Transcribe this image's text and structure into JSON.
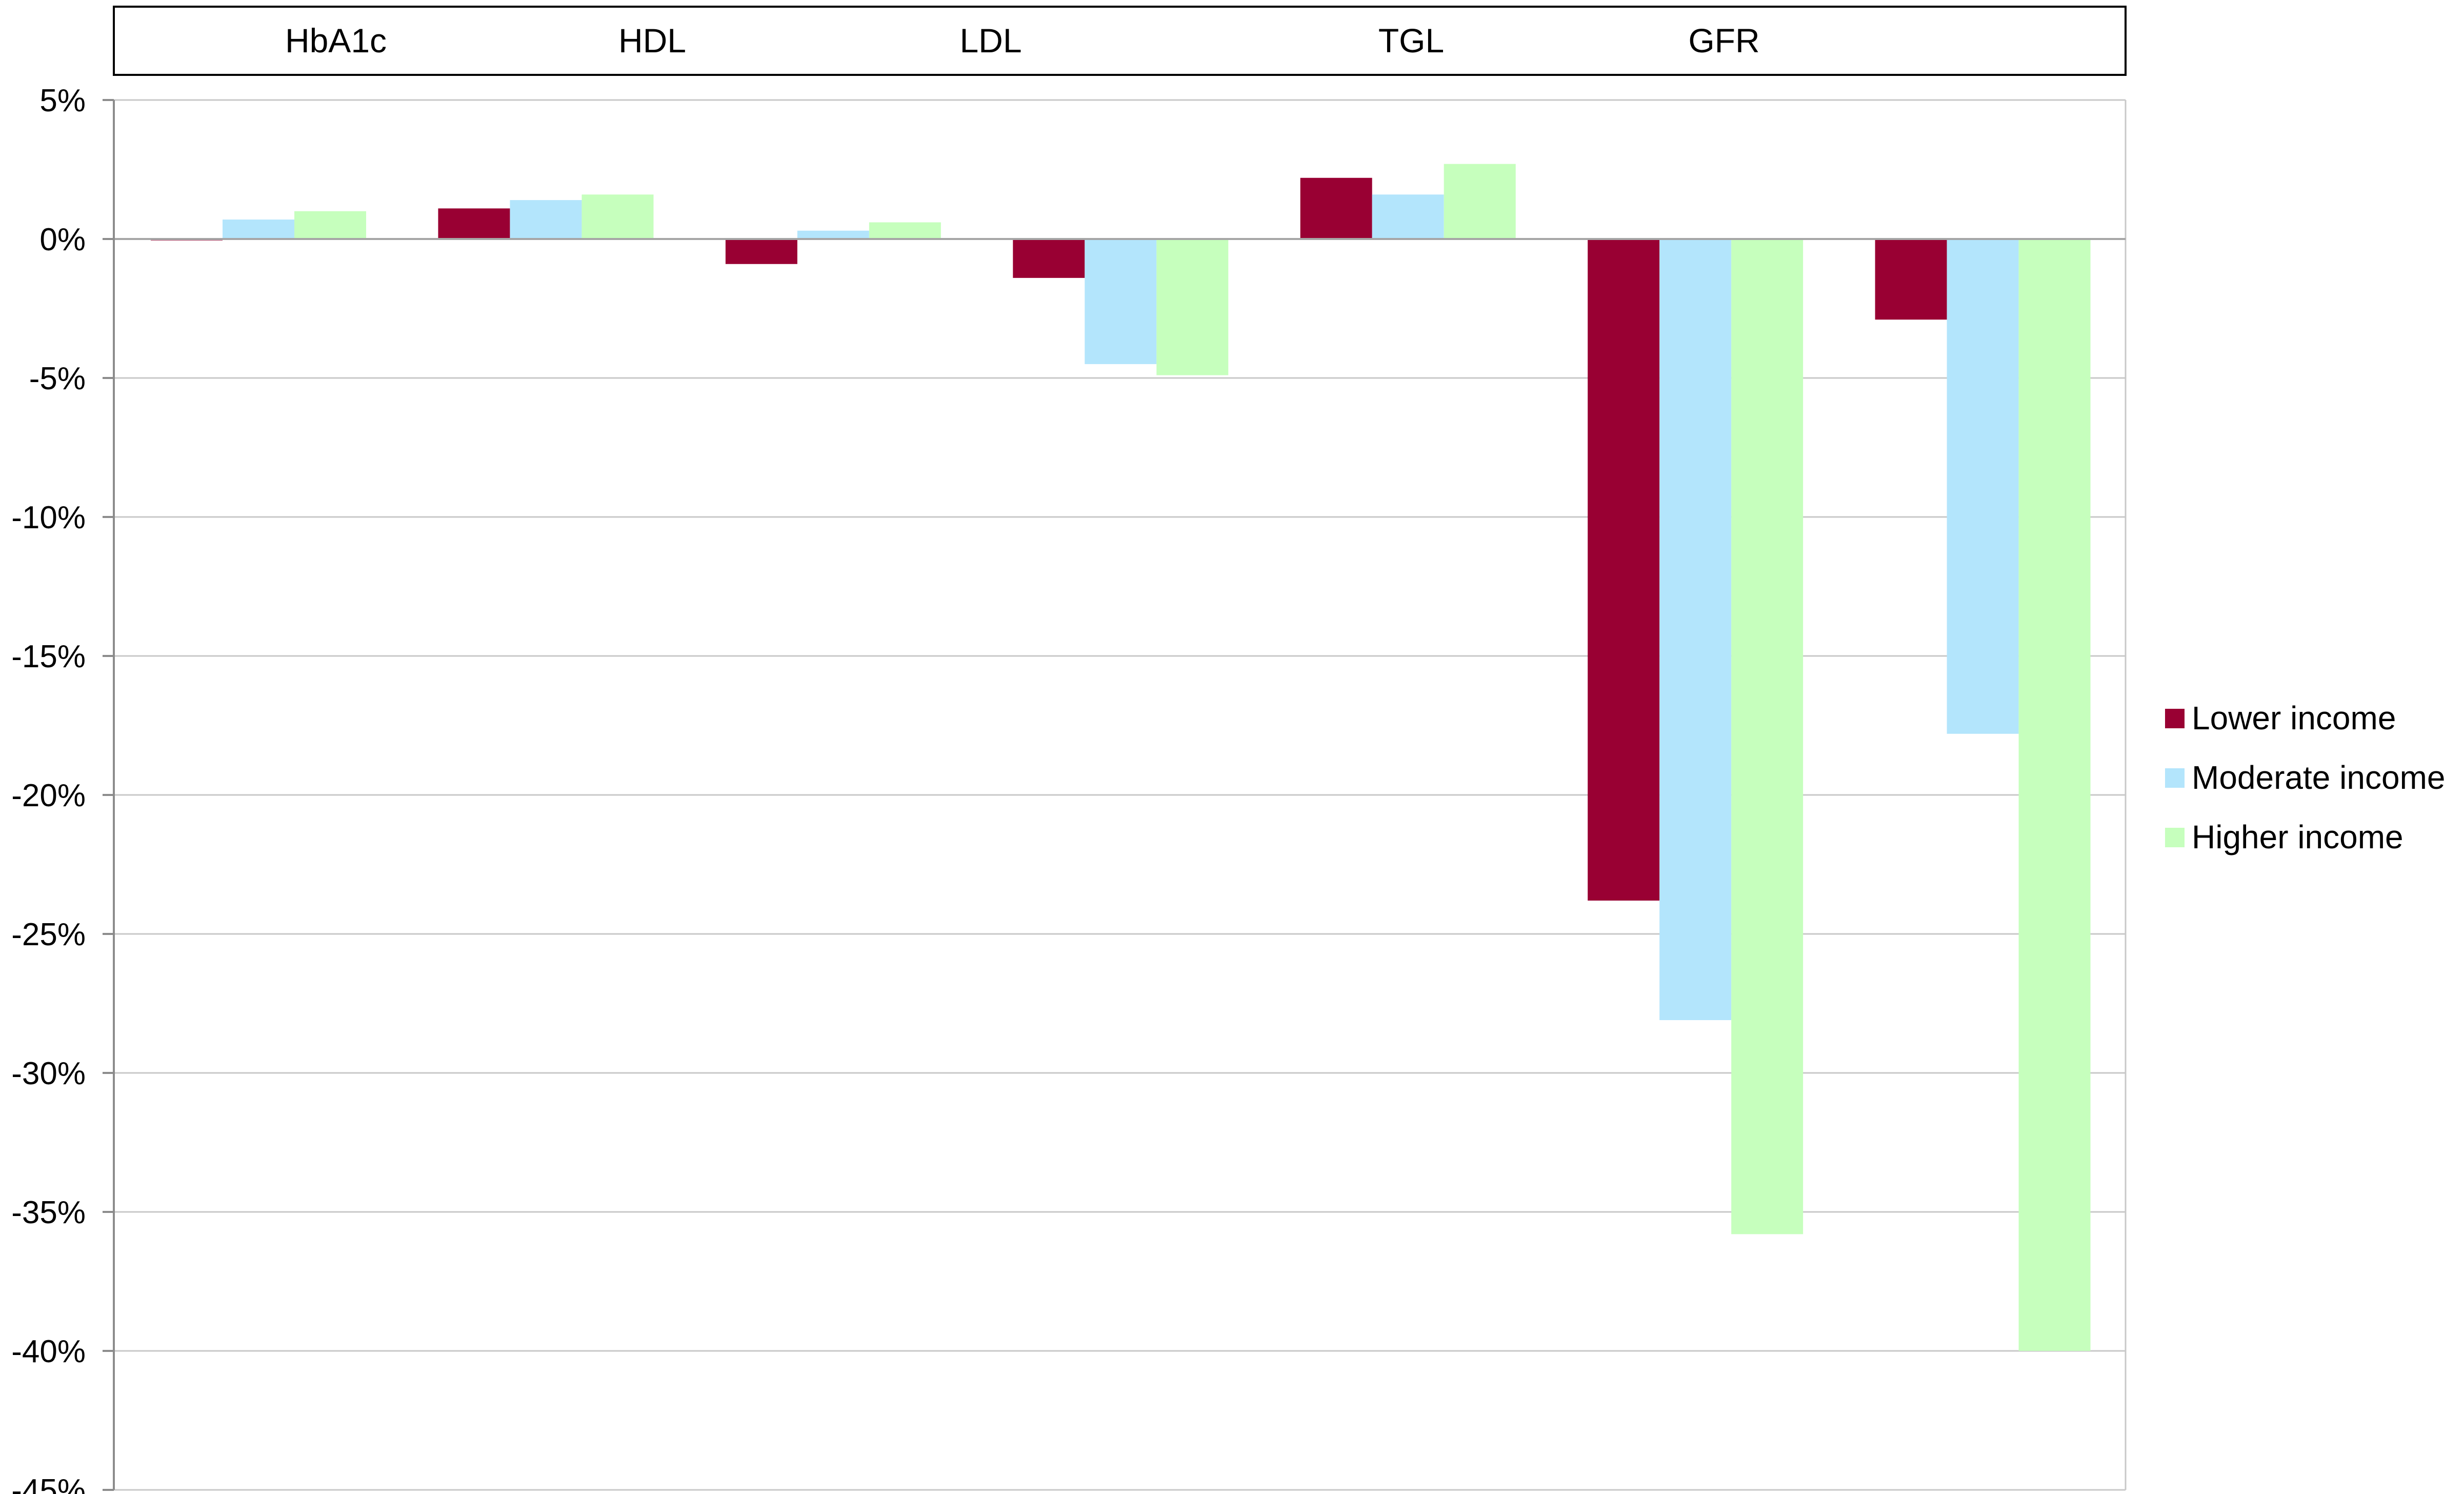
{
  "chart_data": {
    "type": "bar",
    "title": "",
    "xlabel": "",
    "ylabel": "",
    "header_labels": [
      "HbA1c",
      "HDL",
      "LDL",
      "TGL",
      "GFR"
    ],
    "group_count": 7,
    "series": [
      {
        "name": "Lower income",
        "color": "#990033",
        "values": [
          -0.05,
          1.1,
          -0.9,
          -1.4,
          2.2,
          -23.8,
          -2.9
        ]
      },
      {
        "name": "Moderate income",
        "color": "#b3e5fc",
        "values": [
          0.7,
          1.4,
          0.3,
          -4.5,
          1.6,
          -28.1,
          -17.8
        ]
      },
      {
        "name": "Higher income",
        "color": "#c6ffbd",
        "values": [
          1.0,
          1.6,
          0.6,
          -4.9,
          2.7,
          -35.8,
          -40.0
        ]
      }
    ],
    "ylim": [
      -45,
      5
    ],
    "yticks": [
      5,
      0,
      -5,
      -10,
      -15,
      -20,
      -25,
      -30,
      -35,
      -40,
      -45
    ],
    "ytick_labels": [
      "5%",
      "0%",
      "-5%",
      "-10%",
      "-15%",
      "-20%",
      "-25%",
      "-30%",
      "-35%",
      "-40%",
      "-45%"
    ],
    "grid": true,
    "legend_position": "right"
  }
}
